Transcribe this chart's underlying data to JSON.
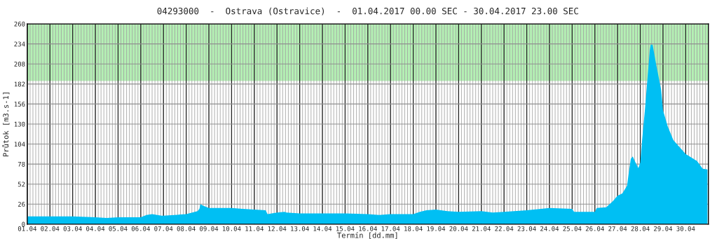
{
  "chart_data": {
    "type": "area",
    "title": "04293000  -  Ostrava (Ostravice)  -  01.04.2017 00.00 SEC - 30.04.2017 23.00 SEC",
    "xlabel": "Termín [dd.mm]",
    "ylabel": "Průtok [m3.s-1]",
    "series": [
      {
        "color": "#00bff3",
        "x": [
          "2017-04-01T00:00",
          "2017-04-02T00:00",
          "2017-04-03T00:00",
          "2017-04-04T00:00",
          "2017-04-04T12:00",
          "2017-04-05T00:00",
          "2017-04-06T00:00",
          "2017-04-06T06:00",
          "2017-04-06T12:00",
          "2017-04-06T22:00",
          "2017-04-07T00:00",
          "2017-04-08T00:00",
          "2017-04-08T12:00",
          "2017-04-08T14:00",
          "2017-04-08T15:00",
          "2017-04-08T18:00",
          "2017-04-09T00:00",
          "2017-04-10T00:00",
          "2017-04-10T12:00",
          "2017-04-11T00:00",
          "2017-04-11T12:00",
          "2017-04-11T14:00",
          "2017-04-12T00:00",
          "2017-04-12T08:00",
          "2017-04-12T10:00",
          "2017-04-13T00:00",
          "2017-04-14T00:00",
          "2017-04-14T02:00",
          "2017-04-15T00:00",
          "2017-04-16T00:00",
          "2017-04-16T12:00",
          "2017-04-17T00:00",
          "2017-04-18T00:00",
          "2017-04-18T07:00",
          "2017-04-18T14:00",
          "2017-04-19T00:00",
          "2017-04-19T12:00",
          "2017-04-20T00:00",
          "2017-04-21T00:00",
          "2017-04-21T12:00",
          "2017-04-22T00:00",
          "2017-04-23T00:00",
          "2017-04-24T00:00",
          "2017-04-25T00:00",
          "2017-04-25T02:00",
          "2017-04-26T00:00",
          "2017-04-26T02:00",
          "2017-04-26T12:00",
          "2017-04-26T19:00",
          "2017-04-27T00:00",
          "2017-04-27T05:00",
          "2017-04-27T10:00",
          "2017-04-27T12:00",
          "2017-04-27T14:00",
          "2017-04-27T16:00",
          "2017-04-27T19:00",
          "2017-04-27T22:00",
          "2017-04-28T00:00",
          "2017-04-28T02:00",
          "2017-04-28T05:00",
          "2017-04-28T07:00",
          "2017-04-28T10:00",
          "2017-04-28T11:00",
          "2017-04-28T13:00",
          "2017-04-28T17:00",
          "2017-04-28T22:00",
          "2017-04-29T00:00",
          "2017-04-29T05:00",
          "2017-04-29T11:00",
          "2017-04-30T00:00",
          "2017-04-30T12:00",
          "2017-04-30T18:00",
          "2017-04-30T23:00"
        ],
        "values": [
          10,
          10,
          10,
          9,
          8,
          9,
          9,
          12,
          13,
          11,
          11,
          13,
          17,
          20,
          26,
          24,
          21,
          21,
          20,
          19,
          18,
          13,
          15,
          16,
          15,
          14,
          14,
          14,
          14,
          13,
          12,
          13,
          13,
          16,
          18,
          19,
          17,
          16,
          17,
          15,
          16,
          18,
          21,
          20,
          16,
          16,
          21,
          22,
          30,
          37,
          40,
          50,
          68,
          85,
          88,
          80,
          73,
          80,
          110,
          150,
          180,
          225,
          233,
          233,
          206,
          175,
          148,
          127,
          109,
          91,
          82,
          72,
          71
        ]
      }
    ],
    "xlim": [
      "2017-04-01T00:00",
      "2017-05-01T00:00"
    ],
    "xticks": [
      {
        "value": "2017-04-01",
        "label": "01.04"
      },
      {
        "value": "2017-04-02",
        "label": "02.04"
      },
      {
        "value": "2017-04-03",
        "label": "03.04"
      },
      {
        "value": "2017-04-04",
        "label": "04.04"
      },
      {
        "value": "2017-04-05",
        "label": "05.04"
      },
      {
        "value": "2017-04-06",
        "label": "06.04"
      },
      {
        "value": "2017-04-07",
        "label": "07.04"
      },
      {
        "value": "2017-04-08",
        "label": "08.04"
      },
      {
        "value": "2017-04-09",
        "label": "09.04"
      },
      {
        "value": "2017-04-10",
        "label": "10.04"
      },
      {
        "value": "2017-04-11",
        "label": "11.04"
      },
      {
        "value": "2017-04-12",
        "label": "12.04"
      },
      {
        "value": "2017-04-13",
        "label": "13.04"
      },
      {
        "value": "2017-04-14",
        "label": "14.04"
      },
      {
        "value": "2017-04-15",
        "label": "15.04"
      },
      {
        "value": "2017-04-16",
        "label": "16.04"
      },
      {
        "value": "2017-04-17",
        "label": "17.04"
      },
      {
        "value": "2017-04-18",
        "label": "18.04"
      },
      {
        "value": "2017-04-19",
        "label": "19.04"
      },
      {
        "value": "2017-04-20",
        "label": "20.04"
      },
      {
        "value": "2017-04-21",
        "label": "21.04"
      },
      {
        "value": "2017-04-22",
        "label": "22.04"
      },
      {
        "value": "2017-04-23",
        "label": "23.04"
      },
      {
        "value": "2017-04-24",
        "label": "24.04"
      },
      {
        "value": "2017-04-25",
        "label": "25.04"
      },
      {
        "value": "2017-04-26",
        "label": "26.04"
      },
      {
        "value": "2017-04-27",
        "label": "27.04"
      },
      {
        "value": "2017-04-28",
        "label": "28.04"
      },
      {
        "value": "2017-04-29",
        "label": "29.04"
      },
      {
        "value": "2017-04-30",
        "label": "30.04"
      }
    ],
    "ylim": [
      0,
      260
    ],
    "yticks": [
      0,
      26,
      52,
      78,
      104,
      130,
      156,
      182,
      208,
      234,
      260
    ],
    "bands": [
      {
        "axis": "y",
        "from": 186,
        "to": 260,
        "color": "#b4f0b4"
      }
    ],
    "grid": true
  }
}
